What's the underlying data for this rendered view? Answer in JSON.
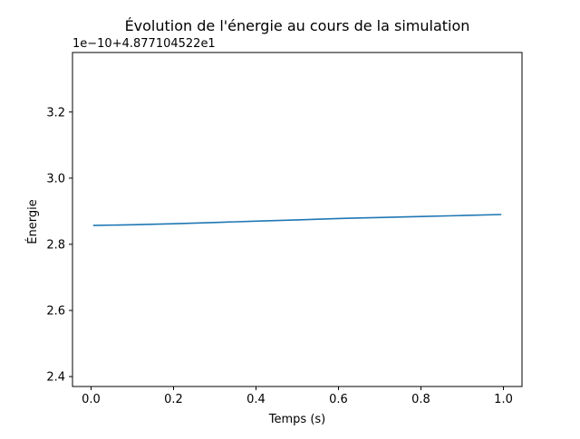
{
  "chart_data": {
    "type": "line",
    "title": "Évolution de l'énergie au cours de la simulation",
    "xlabel": "Temps (s)",
    "ylabel": "Énergie",
    "offset_label": "1e−10+4.877104522e1",
    "xlim": [
      -0.045,
      1.045
    ],
    "ylim": [
      2.37,
      3.38
    ],
    "xticks": [
      0.0,
      0.2,
      0.4,
      0.6,
      0.8,
      1.0
    ],
    "xtick_labels": [
      "0.0",
      "0.2",
      "0.4",
      "0.6",
      "0.8",
      "1.0"
    ],
    "yticks": [
      2.4,
      2.6,
      2.8,
      3.0,
      3.2
    ],
    "ytick_labels": [
      "2.4",
      "2.6",
      "2.8",
      "3.0",
      "3.2"
    ],
    "grid": false,
    "series": [
      {
        "color": "#1f77b4",
        "x": [
          0.005,
          0.1,
          0.2,
          0.3,
          0.4,
          0.5,
          0.6,
          0.7,
          0.8,
          0.9,
          0.995
        ],
        "y": [
          2.857,
          2.859,
          2.862,
          2.866,
          2.87,
          2.874,
          2.878,
          2.881,
          2.884,
          2.887,
          2.89
        ]
      }
    ]
  }
}
